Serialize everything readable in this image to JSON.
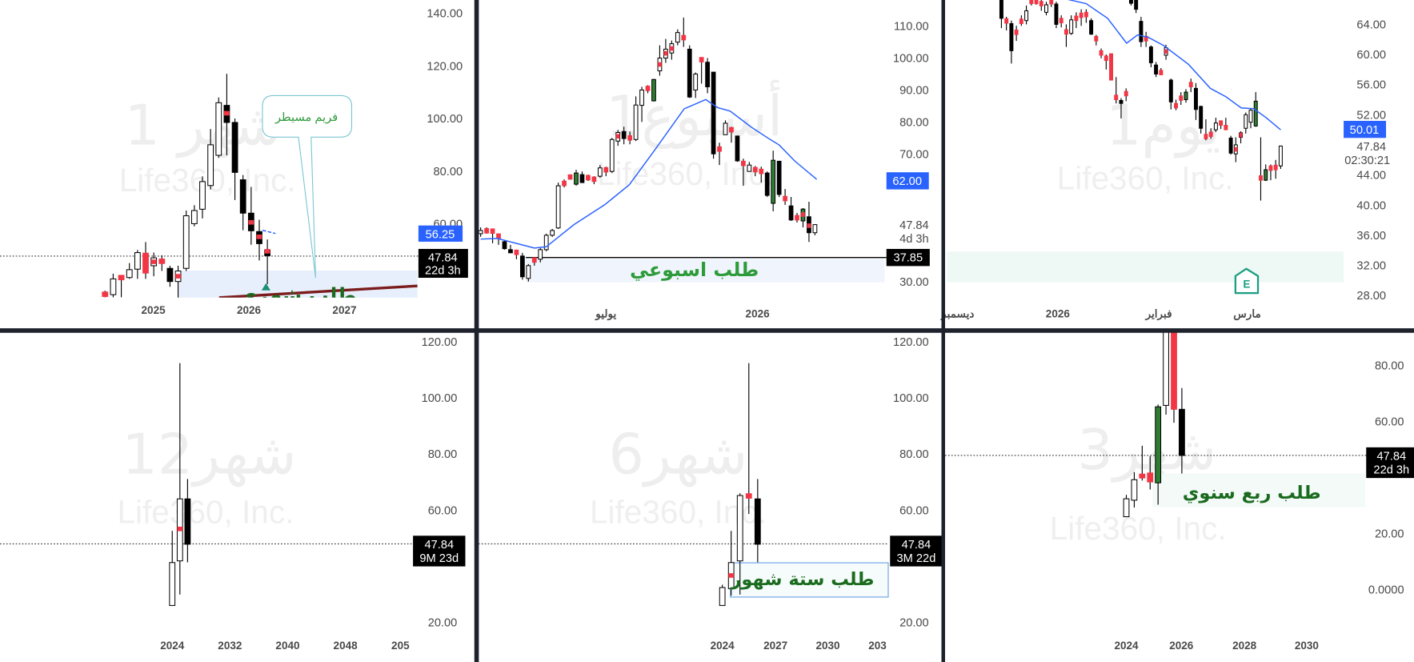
{
  "colors": {
    "up_body": "#ffffff",
    "down_body": "#000000",
    "green_body": "#2e7d32",
    "red_body": "#f23645",
    "ema": "#2962ff",
    "zone_blue": "#e8effc",
    "zone_mint": "#eef8f4",
    "zone_text": "#1b6b1f",
    "zone_text_light": "#2e9b3a",
    "price_box_blue": "#2962ff",
    "price_box_black": "#000000",
    "divider": "#1e222d",
    "trendline": "#7b1c1c"
  },
  "panels": [
    {
      "watermark_tf": "1 شهر",
      "watermark_company": "Life360, Inc.",
      "price_ticks": [
        "140.00",
        "120.00",
        "100.00",
        "80.00",
        "60.00"
      ],
      "time_labels": [
        "2025",
        "2026",
        "2027"
      ],
      "ema_price_box": "56.25",
      "last_price": "47.84",
      "countdown": "22d 3h",
      "zone_label": "طلب شهري",
      "callout": "فريم مسيطر",
      "marker": "triangle-up",
      "candles": [
        [
          33.5,
          34.5,
          32,
          32.8,
          "m"
        ],
        [
          33,
          41,
          32,
          39,
          "w"
        ],
        [
          39.8,
          40.5,
          32,
          39.2,
          "m"
        ],
        [
          39.5,
          45,
          39,
          42.5,
          "w"
        ],
        [
          42.7,
          50,
          39,
          49,
          "w"
        ],
        [
          48.8,
          53,
          39,
          41.2,
          "r"
        ],
        [
          44,
          49,
          40,
          47,
          "w",
          45.5
        ],
        [
          46.2,
          48,
          42,
          45.2,
          "m"
        ],
        [
          43,
          44,
          36,
          38,
          "b"
        ],
        [
          38,
          44,
          30,
          42,
          "w",
          40
        ],
        [
          43,
          65,
          42,
          63,
          "w"
        ],
        [
          60,
          67,
          59,
          65,
          "w"
        ],
        [
          65.5,
          78,
          62,
          76,
          "w"
        ],
        [
          74.5,
          96,
          73,
          90,
          "w"
        ],
        [
          86,
          108,
          85,
          106,
          "w"
        ],
        [
          105,
          117,
          86,
          98.5,
          "b",
          102
        ],
        [
          98.5,
          100,
          69,
          79.5,
          "b"
        ],
        [
          76.7,
          78.5,
          57.5,
          64,
          "b"
        ],
        [
          64,
          74,
          52,
          57.3,
          "b",
          60.5
        ],
        [
          57,
          61.5,
          46,
          52.4,
          "b",
          55
        ],
        [
          50,
          54,
          37,
          47.84,
          "b",
          49.5
        ]
      ],
      "ema": [
        [
          19.4,
          57.5
        ],
        [
          21,
          56.25
        ]
      ]
    },
    {
      "watermark_tf": "1أسبوع",
      "watermark_company": "Life360, Inc.",
      "price_ticks": [
        "110.00",
        "100.00",
        "90.00",
        "80.00",
        "70.00",
        "30.00"
      ],
      "time_labels": [
        "يوليو",
        "2026"
      ],
      "ema_price_box": "62.00",
      "last_price": "47.84",
      "countdown": "4d 3h",
      "level_price_box": "37.85",
      "zone_label": "طلب اسبوعي",
      "candles": [
        [
          45,
          47,
          44,
          46,
          "w"
        ],
        [
          46,
          47,
          45,
          45.8,
          "m"
        ],
        [
          46,
          46.5,
          42,
          45.6,
          "m"
        ],
        [
          44.5,
          45,
          41.5,
          44,
          "m"
        ],
        [
          42.5,
          43,
          40,
          40.3,
          "b"
        ],
        [
          40,
          41.5,
          39,
          39,
          "b"
        ],
        [
          39.5,
          40,
          37,
          38.8,
          "m"
        ],
        [
          38,
          39,
          30.6,
          31.5,
          "b"
        ],
        [
          31,
          35.5,
          30,
          35,
          "w"
        ],
        [
          36.5,
          37.5,
          35,
          37,
          "m"
        ],
        [
          37,
          40.5,
          36,
          40,
          "w"
        ],
        [
          40,
          45,
          39.5,
          44.5,
          "w"
        ],
        [
          44.5,
          46.5,
          44,
          46,
          "w"
        ],
        [
          46.8,
          61,
          46.5,
          60,
          "w"
        ],
        [
          60.5,
          62,
          59.5,
          61,
          "m"
        ],
        [
          62.5,
          63.5,
          62,
          63,
          "m"
        ],
        [
          60.5,
          65,
          60,
          64,
          "g"
        ],
        [
          63.5,
          64.5,
          61,
          61,
          "b"
        ],
        [
          62.8,
          63.5,
          61.5,
          62.3,
          "m"
        ],
        [
          62.3,
          63,
          60.5,
          61.8,
          "m"
        ],
        [
          63,
          66.5,
          62.5,
          65.6,
          "w"
        ],
        [
          65.3,
          66,
          63,
          64.7,
          "m"
        ],
        [
          64.5,
          75,
          64,
          74.5,
          "w"
        ],
        [
          74,
          77.5,
          72.5,
          76.7,
          "w",
          75.5
        ],
        [
          77,
          78.5,
          73,
          74.8,
          "b"
        ],
        [
          75.3,
          77,
          73,
          74.7,
          "m"
        ],
        [
          74.5,
          88,
          74,
          85.3,
          "w"
        ],
        [
          85.2,
          91,
          80,
          90,
          "w"
        ],
        [
          90.8,
          91.5,
          89,
          90.2,
          "m"
        ],
        [
          86.6,
          93.5,
          86.4,
          93.3,
          "g"
        ],
        [
          96,
          104,
          94.5,
          100,
          "w",
          98
        ],
        [
          100,
          106,
          98.5,
          102.8,
          "w",
          101.5
        ],
        [
          101.6,
          105.5,
          99.5,
          104.5,
          "w",
          103
        ],
        [
          105,
          109,
          104,
          108,
          "w"
        ],
        [
          106.8,
          112.7,
          103.5,
          106,
          "m"
        ],
        [
          102.8,
          104,
          87.5,
          87.8,
          "b"
        ],
        [
          90,
          95.5,
          87.5,
          95,
          "w"
        ],
        [
          99.8,
          100,
          92,
          99.2,
          "m"
        ],
        [
          98.7,
          100,
          89,
          91,
          "b"
        ],
        [
          95.6,
          95.6,
          68.5,
          70,
          "b"
        ],
        [
          71.8,
          73.5,
          66.5,
          71.2,
          "m"
        ],
        [
          76,
          80.5,
          76,
          79.6,
          "w"
        ],
        [
          77.8,
          78.5,
          73.5,
          77.3,
          "m"
        ],
        [
          75.6,
          75.6,
          67.5,
          67.8,
          "b"
        ],
        [
          67.3,
          68.5,
          60,
          66.7,
          "m"
        ],
        [
          64.5,
          67.5,
          64.5,
          66.5,
          "w"
        ],
        [
          65.3,
          66.2,
          63,
          64.8,
          "m"
        ],
        [
          64.8,
          66,
          61,
          64.2,
          "m"
        ],
        [
          64,
          64.5,
          56.5,
          57,
          "b"
        ],
        [
          54.5,
          71,
          52,
          68,
          "g"
        ],
        [
          67.7,
          67.7,
          56.5,
          57.3,
          "b"
        ],
        [
          56.3,
          59,
          54,
          55.7,
          "m"
        ],
        [
          53.7,
          56.5,
          49,
          49.3,
          "b"
        ],
        [
          50.3,
          51.5,
          48.5,
          49.7,
          "m"
        ],
        [
          49,
          53,
          47,
          52.7,
          "g",
          51
        ],
        [
          50.3,
          55,
          42.4,
          45.3,
          "b",
          47.5
        ],
        [
          45.3,
          48,
          44.5,
          47.84,
          "w"
        ]
      ],
      "ema": [
        [
          0,
          43.3
        ],
        [
          2.8,
          43.5
        ],
        [
          5.9,
          42
        ],
        [
          9,
          40.5
        ],
        [
          11,
          40.9
        ],
        [
          12.6,
          43.3
        ],
        [
          15.6,
          47.8
        ],
        [
          20.8,
          54.1
        ],
        [
          24.9,
          60.3
        ],
        [
          29,
          70.8
        ],
        [
          34.1,
          84.1
        ],
        [
          37.7,
          87
        ],
        [
          39.7,
          84.5
        ],
        [
          41.8,
          83.4
        ],
        [
          45.4,
          78.3
        ],
        [
          48.5,
          74.5
        ],
        [
          50,
          72.8
        ],
        [
          52.6,
          67.8
        ],
        [
          56.3,
          62
        ]
      ]
    },
    {
      "watermark_tf": "1يوم",
      "watermark_company": "Life360, Inc.",
      "price_ticks": [
        "64.00",
        "60.00",
        "56.00",
        "52.00",
        "44.00",
        "40.00",
        "36.00",
        "32.00",
        "28.00"
      ],
      "time_labels": [
        "ديسمبر",
        "2026",
        "فبراير",
        "مارس"
      ],
      "ema_price_box": "50.01",
      "last_price": "47.84",
      "countdown": "02:30:21",
      "earnings_badge": "E",
      "candles": [
        [
          67.3,
          68.5,
          63.5,
          64.8,
          "b"
        ],
        [
          64.6,
          65,
          63.2,
          64.3,
          "m"
        ],
        [
          64.1,
          64.5,
          58.8,
          60.5,
          "b"
        ],
        [
          63.1,
          63.8,
          61.8,
          62.8,
          "m"
        ],
        [
          64.6,
          65.2,
          63.8,
          64.2,
          "m"
        ],
        [
          64.5,
          66.5,
          64,
          65.8,
          "w"
        ],
        [
          67.2,
          67.5,
          66.5,
          66.9,
          "m"
        ],
        [
          67.2,
          67.5,
          66.6,
          66.9,
          "m"
        ],
        [
          66.9,
          67.3,
          65.8,
          66.6,
          "m"
        ],
        [
          65.6,
          67,
          65.2,
          66.6,
          "w"
        ],
        [
          67.2,
          67.6,
          66.3,
          66.8,
          "m"
        ],
        [
          66.7,
          67,
          63.5,
          64,
          "b"
        ],
        [
          64.7,
          65.2,
          63.6,
          64.3,
          "m"
        ],
        [
          63.2,
          64,
          61,
          62.8,
          "m"
        ],
        [
          62.8,
          65.2,
          62.6,
          64.6,
          "w"
        ],
        [
          65,
          65.6,
          63.5,
          64.6,
          "m"
        ],
        [
          65.4,
          66,
          63.8,
          65,
          "m"
        ],
        [
          65.5,
          66,
          64.2,
          65.1,
          "m"
        ],
        [
          64.5,
          64.8,
          62.6,
          62.7,
          "b"
        ],
        [
          62.3,
          62.6,
          61.2,
          61.9,
          "m"
        ],
        [
          60.4,
          60.8,
          59.5,
          60,
          "m"
        ],
        [
          59.7,
          60,
          58,
          59.3,
          "m"
        ],
        [
          60.1,
          60.1,
          56.6,
          56.6,
          "r"
        ],
        [
          54.5,
          57,
          53.5,
          54.1,
          "m"
        ],
        [
          53.9,
          54.2,
          51.5,
          53.5,
          "b"
        ],
        [
          55,
          55.5,
          53.8,
          54.6,
          "m"
        ],
        [
          67.5,
          68,
          66.5,
          66.8,
          "b"
        ],
        [
          67.5,
          68,
          65.5,
          66,
          "b"
        ],
        [
          64.4,
          65,
          61,
          61.7,
          "b"
        ],
        [
          62.3,
          63,
          61,
          61.9,
          "m"
        ],
        [
          61,
          61.2,
          58.3,
          58.9,
          "b"
        ],
        [
          58.6,
          59,
          57,
          57.4,
          "b"
        ],
        [
          57.8,
          58.2,
          57.3,
          57.4,
          "m"
        ],
        [
          59.9,
          61.3,
          59.3,
          60.9,
          "w",
          60.4
        ],
        [
          56.6,
          56.8,
          52.7,
          53.7,
          "b"
        ],
        [
          53.4,
          54,
          52.6,
          53,
          "m"
        ],
        [
          54.4,
          55,
          53.3,
          54,
          "m"
        ],
        [
          54,
          55.4,
          53.6,
          55,
          "g"
        ],
        [
          56.2,
          56.8,
          55,
          55.8,
          "m"
        ],
        [
          55.5,
          56.2,
          51.3,
          52.7,
          "b"
        ],
        [
          53.1,
          53.2,
          49.5,
          50.2,
          "b"
        ],
        [
          49.3,
          51.4,
          48.6,
          48.9,
          "m"
        ],
        [
          49.6,
          50.2,
          48.8,
          49.2,
          "m"
        ],
        [
          50,
          51.6,
          49.7,
          50.9,
          "w"
        ],
        [
          51.1,
          51.2,
          50.1,
          50.7,
          "m"
        ],
        [
          50.5,
          51.6,
          50,
          50.1,
          "m"
        ],
        [
          48.9,
          49.2,
          46.7,
          46.9,
          "b"
        ],
        [
          46.8,
          49,
          45.7,
          48,
          "w",
          47.4
        ],
        [
          49,
          49.8,
          48.2,
          49.6,
          "w",
          49.3
        ],
        [
          50.2,
          52.3,
          49.5,
          52,
          "w"
        ],
        [
          51,
          52.8,
          50.2,
          52.6,
          "w"
        ],
        [
          50.5,
          55,
          50.4,
          53.8,
          "g"
        ],
        [
          43.8,
          49,
          40.6,
          43.4,
          "m"
        ],
        [
          43.3,
          45.4,
          43.2,
          44.7,
          "g"
        ],
        [
          45.1,
          45.4,
          43.3,
          44.7,
          "m"
        ],
        [
          45.2,
          46,
          43.5,
          44.8,
          "m"
        ],
        [
          45.2,
          47.9,
          44.8,
          47.84,
          "w"
        ]
      ],
      "ema": [
        [
          13.3,
          67.3
        ],
        [
          17,
          66.75
        ],
        [
          21.3,
          64.8
        ],
        [
          25.1,
          61.5
        ],
        [
          27.3,
          62.6
        ],
        [
          29.4,
          62.3
        ],
        [
          32.5,
          61.2
        ],
        [
          37.5,
          58.7
        ],
        [
          41.9,
          55.5
        ],
        [
          45,
          54.4
        ],
        [
          48.1,
          52.9
        ],
        [
          50.6,
          52.8
        ],
        [
          53.1,
          51.6
        ],
        [
          56,
          50
        ]
      ]
    },
    {
      "watermark_tf": "شهر12",
      "watermark_company": "Life360, Inc.",
      "price_ticks": [
        "120.00",
        "100.00",
        "80.00",
        "60.00",
        "20.00"
      ],
      "time_labels": [
        "2024",
        "2032",
        "2040",
        "2048",
        "205"
      ],
      "last_price": "47.84",
      "countdown": "9M 23d",
      "candles": [
        [
          26,
          52.6,
          26,
          41.3,
          "w"
        ],
        [
          41.9,
          112.4,
          29.9,
          64,
          "w",
          53.3
        ],
        [
          64,
          71.1,
          41.4,
          47.84,
          "b"
        ]
      ]
    },
    {
      "watermark_tf": "شهر6",
      "watermark_company": "Life360, Inc.",
      "price_ticks": [
        "120.00",
        "100.00",
        "80.00",
        "60.00",
        "20.00"
      ],
      "time_labels": [
        "2024",
        "2027",
        "2030",
        "203"
      ],
      "last_price": "47.84",
      "countdown": "3M 22d",
      "zone_label": "طلب ستة شهور",
      "candles": [
        [
          26,
          33.4,
          26,
          32.4,
          "w"
        ],
        [
          32,
          52.6,
          29.5,
          41.3,
          "w",
          36.7
        ],
        [
          41.9,
          66,
          29.9,
          65.2,
          "w"
        ],
        [
          65.7,
          112.4,
          58.6,
          64.4,
          "m"
        ],
        [
          64,
          71.1,
          41.4,
          47.84,
          "b"
        ]
      ]
    },
    {
      "watermark_tf": "شهر3",
      "watermark_company": "Life360, Inc.",
      "price_ticks": [
        "80.00",
        "60.00",
        "20.00",
        "0.0000"
      ],
      "time_labels": [
        "2024",
        "2026",
        "2028",
        "2030"
      ],
      "last_price": "47.84",
      "countdown": "22d 3h",
      "zone_label": "طلب ربع سنوي",
      "candles": [
        [
          26,
          33.8,
          26,
          32.4,
          "w"
        ],
        [
          31.9,
          41.9,
          29.3,
          39.2,
          "w"
        ],
        [
          41.2,
          51.3,
          38.9,
          39.8,
          "r"
        ],
        [
          41.6,
          47.6,
          35.7,
          38.4,
          "r"
        ],
        [
          38.1,
          66,
          30.3,
          65.2,
          "g"
        ],
        [
          65.7,
          130,
          62.4,
          130,
          "w"
        ],
        [
          130,
          130,
          59.5,
          64.3,
          "r"
        ],
        [
          64.3,
          71.9,
          41.4,
          47.84,
          "b"
        ]
      ]
    }
  ]
}
